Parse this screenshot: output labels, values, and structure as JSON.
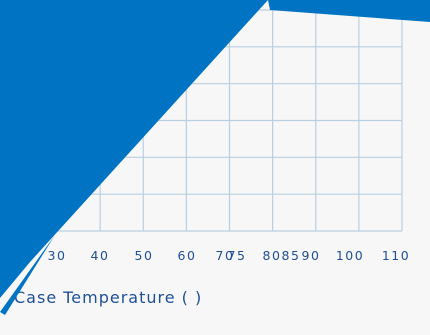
{
  "chart_data": {
    "type": "line",
    "title": "",
    "xlabel": "Case Temperature (   )",
    "ylabel": "",
    "x_tick_labels": [
      "30",
      "40",
      "50",
      "60",
      "70",
      "75",
      "80",
      "85",
      "90",
      "100",
      "110"
    ],
    "x_tick_values": [
      30,
      40,
      50,
      60,
      70,
      75,
      80,
      85,
      90,
      100,
      110
    ],
    "xlim": [
      30,
      110
    ],
    "grid": true,
    "series": []
  },
  "colors": {
    "background": "#f6f7f6",
    "grid": "#b9cfe1",
    "overlay": "#0073c2",
    "text": "#1f4f96"
  }
}
